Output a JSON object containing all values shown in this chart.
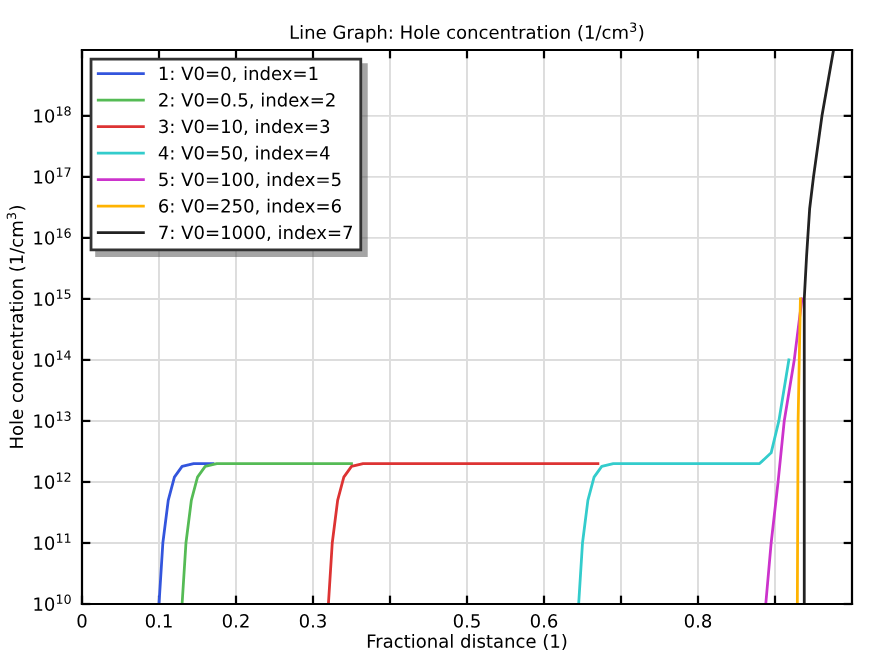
{
  "chart_data": {
    "type": "line",
    "title": "Line Graph: Hole concentration (1/cm$^{3}$)",
    "xlabel": "Fractional distance (1)",
    "ylabel": "Hole concentration (1/cm$^{3}$)",
    "log": "y",
    "grid": true,
    "legend": "top left",
    "marker": "none",
    "line_style": "solid",
    "xlim": [
      0,
      1
    ],
    "ylim": [
      10000000000.0,
      1.2e+19
    ],
    "xticks": [
      0,
      0.1,
      0.2,
      0.3,
      {
        "value": 0.4,
        "label": null
      },
      0.5,
      0.6,
      {
        "value": 0.7,
        "label": null
      },
      0.8,
      {
        "value": 0.9,
        "label": null
      }
    ],
    "yticks": [
      {
        "value": 10000000000.0,
        "label": "10$^{10}$"
      },
      {
        "value": 100000000000.0,
        "label": "10$^{11}$"
      },
      {
        "value": 1000000000000.0,
        "label": "10$^{12}$"
      },
      {
        "value": 10000000000000.0,
        "label": "10$^{13}$"
      },
      {
        "value": 100000000000000.0,
        "label": "10$^{14}$"
      },
      {
        "value": 1000000000000000.0,
        "label": "10$^{15}$"
      },
      {
        "value": 1e+16,
        "label": "10$^{16}$"
      },
      {
        "value": 1e+17,
        "label": "10$^{17}$"
      },
      {
        "value": 1e+18,
        "label": "10$^{18}$"
      }
    ],
    "series": [
      {
        "name": "1: V0=0, index=1",
        "color": "#3355dd",
        "x": [
          0.1,
          0.105,
          0.112,
          0.12,
          0.13,
          0.145,
          0.17
        ],
        "values": [
          10000000000.0,
          100000000000.0,
          500000000000.0,
          1200000000000.0,
          1800000000000.0,
          2000000000000.0,
          2000000000000.0
        ]
      },
      {
        "name": "2: V0=0.5, index=2",
        "color": "#55bb55",
        "x": [
          0.13,
          0.135,
          0.142,
          0.15,
          0.16,
          0.175,
          0.35
        ],
        "values": [
          10000000000.0,
          100000000000.0,
          500000000000.0,
          1200000000000.0,
          1800000000000.0,
          2000000000000.0,
          2000000000000.0
        ]
      },
      {
        "name": "3: V0=10, index=3",
        "color": "#dd3333",
        "x": [
          0.32,
          0.325,
          0.332,
          0.34,
          0.35,
          0.365,
          0.5,
          0.67
        ],
        "values": [
          10000000000.0,
          100000000000.0,
          500000000000.0,
          1200000000000.0,
          1800000000000.0,
          2000000000000.0,
          2000000000000.0,
          2000000000000.0
        ]
      },
      {
        "name": "4: V0=50, index=4",
        "color": "#33cccc",
        "x": [
          0.645,
          0.65,
          0.657,
          0.665,
          0.675,
          0.69,
          0.8,
          0.88,
          0.895,
          0.905,
          0.918
        ],
        "values": [
          10000000000.0,
          100000000000.0,
          500000000000.0,
          1200000000000.0,
          1800000000000.0,
          2000000000000.0,
          2000000000000.0,
          2000000000000.0,
          3000000000000.0,
          10000000000000.0,
          100000000000000.0
        ]
      },
      {
        "name": "5: V0=100, index=5",
        "color": "#cc33cc",
        "x": [
          0.888,
          0.895,
          0.904,
          0.912,
          0.925,
          0.935
        ],
        "values": [
          10000000000.0,
          100000000000.0,
          1000000000000.0,
          10000000000000.0,
          100000000000000.0,
          1000000000000000.0
        ]
      },
      {
        "name": "6: V0=250, index=6",
        "color": "#ffb300",
        "x": [
          0.929,
          0.93,
          0.933
        ],
        "values": [
          10000000000.0,
          10000000000000.0,
          1000000000000000.0
        ]
      },
      {
        "name": "7: V0=1000, index=7",
        "color": "#222222",
        "x": [
          0.938,
          0.938,
          0.941,
          0.945,
          0.95,
          0.961,
          0.976
        ],
        "values": [
          10000000000.0,
          1000000000000000.0,
          5000000000000000.0,
          3e+16,
          1e+17,
          1e+18,
          1.2e+19
        ]
      }
    ]
  }
}
